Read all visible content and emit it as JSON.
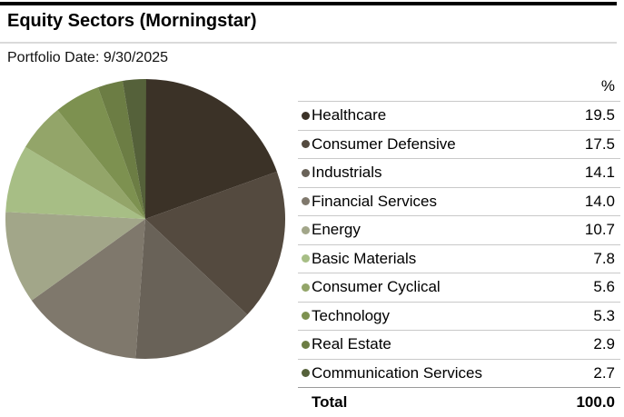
{
  "header": {
    "title": "Equity Sectors (Morningstar)",
    "portfolio_date": "Portfolio Date: 9/30/2025"
  },
  "table": {
    "value_column_header": "%",
    "total_label": "Total",
    "total_value": "100.0"
  },
  "chart_data": {
    "type": "pie",
    "title": "Equity Sectors (Morningstar)",
    "unit": "%",
    "start_angle": "12 o'clock",
    "direction": "clockwise",
    "legend_position": "right",
    "categories": [
      "Healthcare",
      "Consumer Defensive",
      "Industrials",
      "Financial Services",
      "Energy",
      "Basic Materials",
      "Consumer Cyclical",
      "Technology",
      "Real Estate",
      "Communication Services"
    ],
    "values": [
      19.5,
      17.5,
      14.1,
      14.0,
      10.7,
      7.8,
      5.6,
      5.3,
      2.9,
      2.7
    ],
    "display_values": [
      "19.5",
      "17.5",
      "14.1",
      "14.0",
      "10.7",
      "7.8",
      "5.6",
      "5.3",
      "2.9",
      "2.7"
    ],
    "colors": [
      "#3b3227",
      "#544a3f",
      "#696258",
      "#7f786c",
      "#a2a689",
      "#a7be85",
      "#93a569",
      "#7d9150",
      "#6c7d44",
      "#55613a"
    ],
    "total": 100.0
  }
}
